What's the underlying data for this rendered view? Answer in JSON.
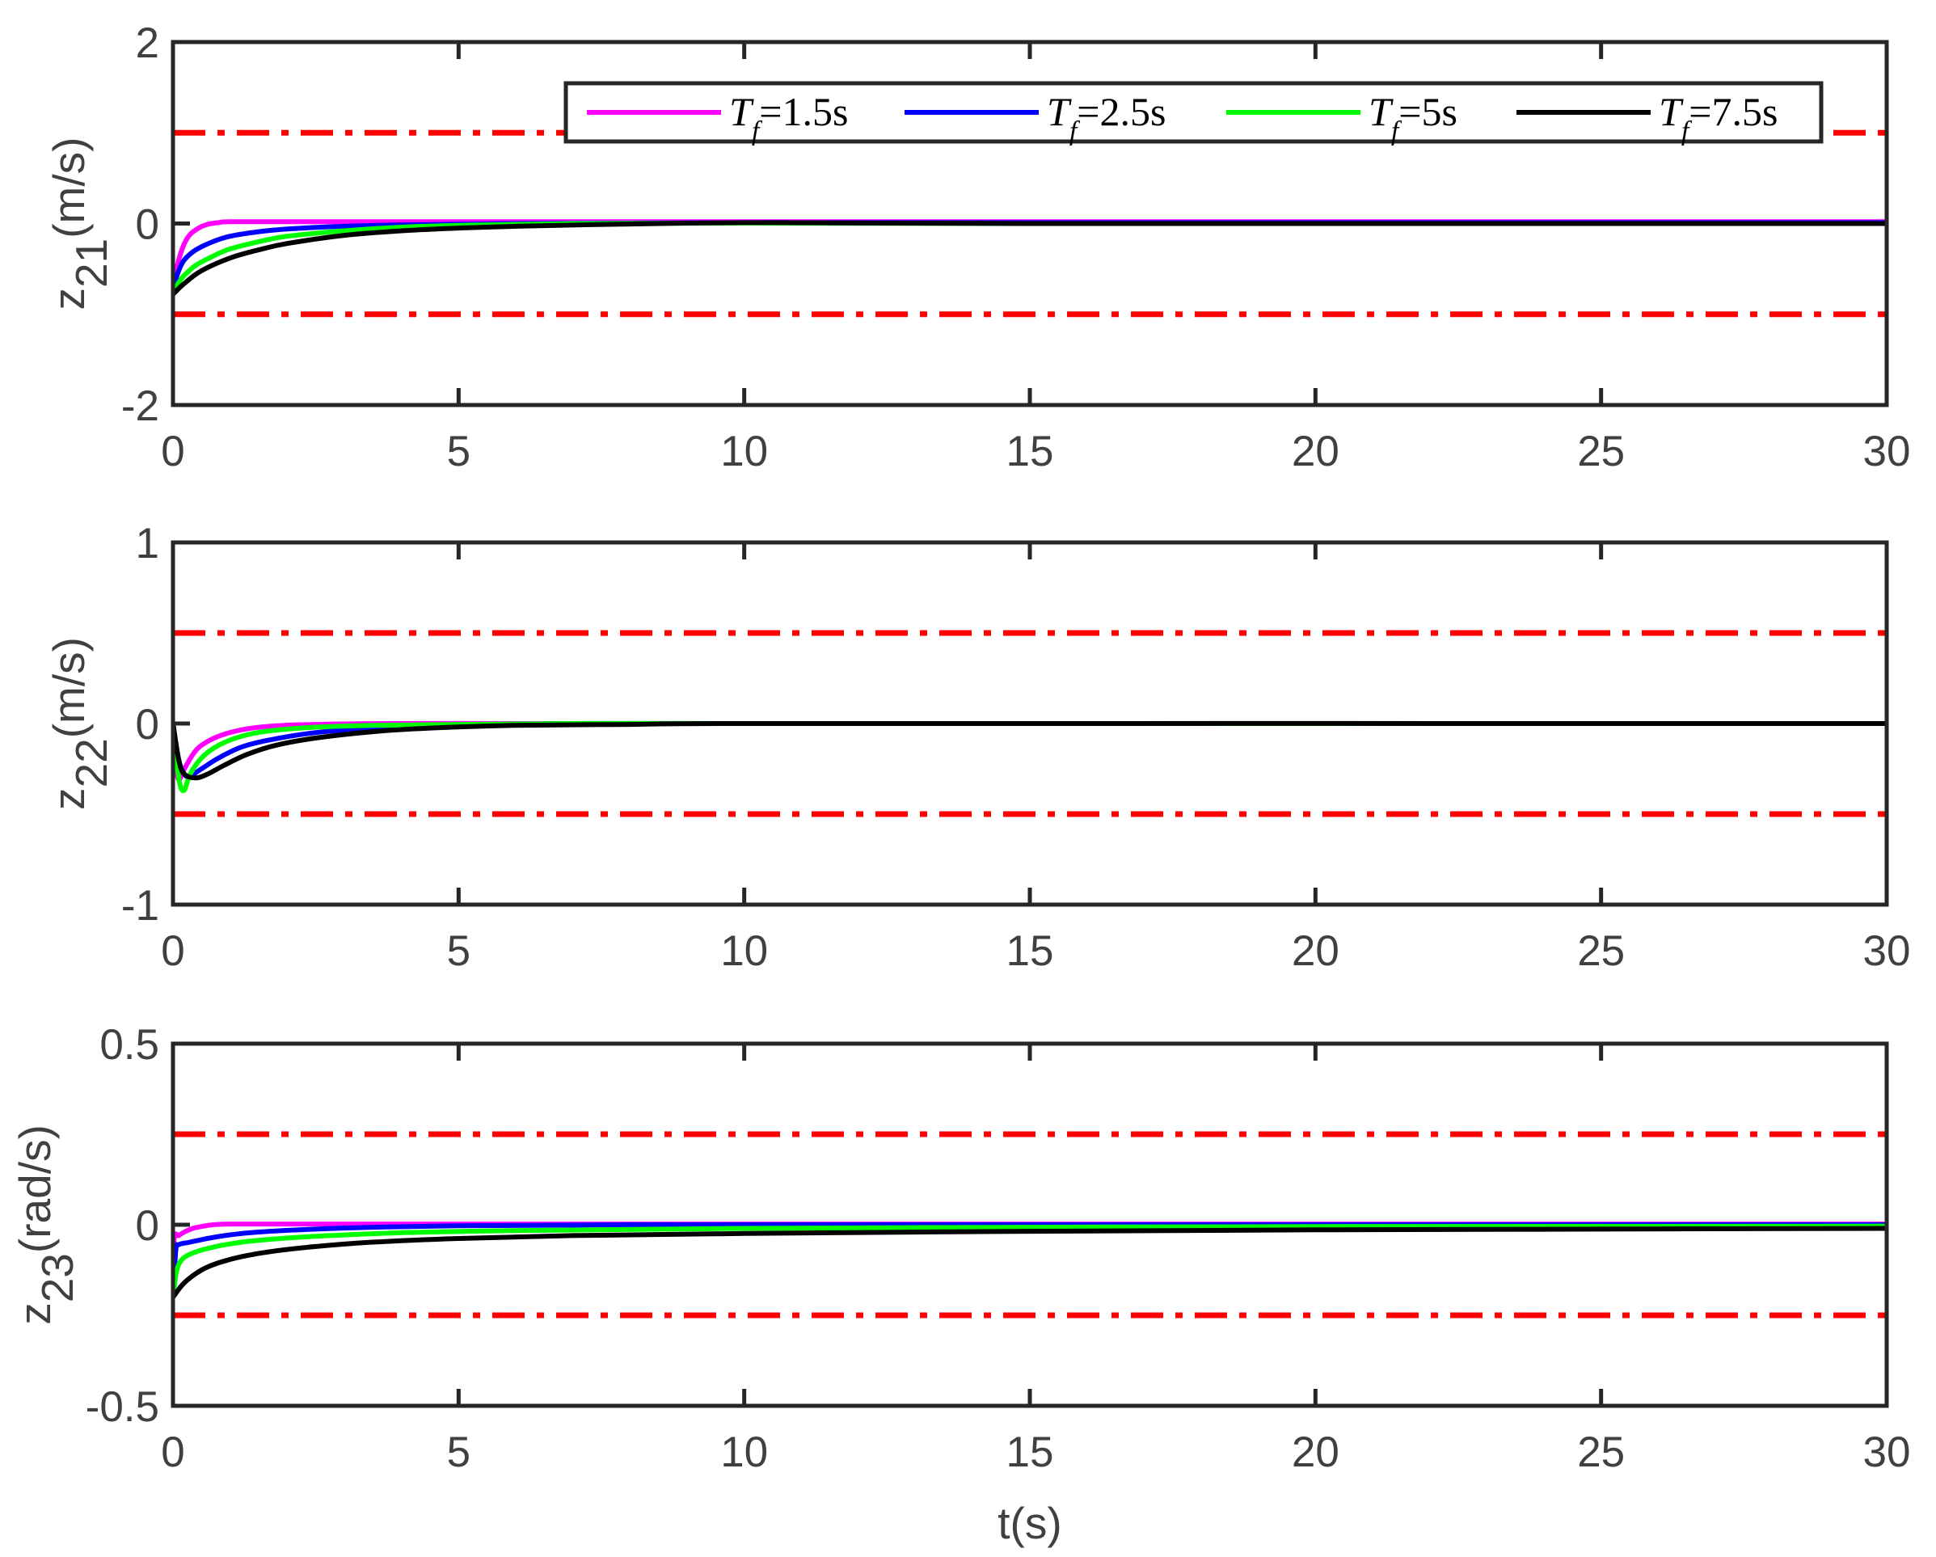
{
  "chart_data": {
    "type": "line",
    "layout": "3 vertically stacked subplots sharing x-axis",
    "xlabel": "t(s)",
    "xlim": [
      0,
      30
    ],
    "xticks": [
      0,
      5,
      10,
      15,
      20,
      25,
      30
    ],
    "grid": false,
    "legend": {
      "position": "top inside first subplot, horizontal",
      "entries": [
        {
          "label_main": "T",
          "label_sub": "f",
          "label_rest": "=1.5s",
          "color": "#ff00ff"
        },
        {
          "label_main": "T",
          "label_sub": "f",
          "label_rest": "=2.5s",
          "color": "#0000ff"
        },
        {
          "label_main": "T",
          "label_sub": "f",
          "label_rest": "=5s",
          "color": "#00ff00"
        },
        {
          "label_main": "T",
          "label_sub": "f",
          "label_rest": "=7.5s",
          "color": "#000000"
        }
      ]
    },
    "subplots": [
      {
        "ylabel_main": "z",
        "ylabel_sub": "21",
        "ylabel_unit": "(m/s)",
        "ylim": [
          -2,
          2
        ],
        "yticks": [
          -2,
          0,
          2
        ],
        "ytick_labels": [
          "-2",
          "0",
          "2"
        ],
        "bounds": {
          "upper": 1,
          "lower": -1,
          "color": "#ff0000",
          "style": "dash-dot"
        },
        "series": [
          {
            "name": "Tf=1.5s",
            "color": "#ff00ff",
            "x": [
              0,
              0.05,
              0.1,
              0.2,
              0.3,
              0.45,
              0.6,
              0.8,
              1.0,
              2,
              5,
              10,
              20,
              30
            ],
            "y": [
              -0.78,
              -0.55,
              -0.4,
              -0.22,
              -0.12,
              -0.05,
              -0.01,
              0.01,
              0.02,
              0.02,
              0.02,
              0.02,
              0.02,
              0.02
            ]
          },
          {
            "name": "Tf=2.5s",
            "color": "#0000ff",
            "x": [
              0,
              0.05,
              0.1,
              0.2,
              0.4,
              0.7,
              1.0,
              1.5,
              2,
              3,
              4,
              6,
              10,
              20,
              30
            ],
            "y": [
              -0.78,
              -0.62,
              -0.52,
              -0.4,
              -0.29,
              -0.2,
              -0.14,
              -0.09,
              -0.06,
              -0.03,
              -0.015,
              0,
              0.01,
              0.01,
              0.01
            ]
          },
          {
            "name": "Tf=5s",
            "color": "#00ff00",
            "x": [
              0,
              0.1,
              0.2,
              0.4,
              0.7,
              1.0,
              1.5,
              2,
              3,
              4,
              5,
              7,
              10,
              15,
              20,
              30
            ],
            "y": [
              -0.78,
              -0.65,
              -0.57,
              -0.46,
              -0.36,
              -0.28,
              -0.2,
              -0.14,
              -0.08,
              -0.04,
              -0.02,
              0,
              0.005,
              0,
              0,
              0
            ]
          },
          {
            "name": "Tf=7.5s",
            "color": "#000000",
            "x": [
              0,
              0.2,
              0.5,
              1.0,
              1.5,
              2,
              3,
              4,
              5,
              6,
              8,
              10,
              12,
              15,
              20,
              30
            ],
            "y": [
              -0.78,
              -0.66,
              -0.52,
              -0.38,
              -0.29,
              -0.22,
              -0.13,
              -0.08,
              -0.05,
              -0.03,
              -0.005,
              0.01,
              0.005,
              0,
              0,
              0
            ]
          }
        ]
      },
      {
        "ylabel_main": "z",
        "ylabel_sub": "22",
        "ylabel_unit": "(m/s)",
        "ylim": [
          -1,
          1
        ],
        "yticks": [
          -1,
          0,
          1
        ],
        "ytick_labels": [
          "-1",
          "0",
          "1"
        ],
        "bounds": {
          "upper": 0.5,
          "lower": -0.5,
          "color": "#ff0000",
          "style": "dash-dot"
        },
        "series": [
          {
            "name": "Tf=1.5s",
            "color": "#ff00ff",
            "x": [
              0,
              0.05,
              0.1,
              0.2,
              0.35,
              0.5,
              0.8,
              1.2,
              1.7,
              2.5,
              4,
              10,
              30
            ],
            "y": [
              0,
              -0.22,
              -0.31,
              -0.25,
              -0.17,
              -0.12,
              -0.07,
              -0.035,
              -0.015,
              -0.005,
              0,
              0,
              0
            ]
          },
          {
            "name": "Tf=2.5s",
            "color": "#0000ff",
            "x": [
              0,
              0.1,
              0.2,
              0.3,
              0.5,
              0.8,
              1.2,
              1.7,
              2.5,
              3.5,
              5,
              7,
              10,
              30
            ],
            "y": [
              0,
              -0.2,
              -0.28,
              -0.29,
              -0.25,
              -0.19,
              -0.13,
              -0.09,
              -0.05,
              -0.025,
              -0.01,
              0,
              0,
              0
            ]
          },
          {
            "name": "Tf=5s",
            "color": "#00ff00",
            "x": [
              0,
              0.1,
              0.19,
              0.3,
              0.5,
              0.8,
              1.2,
              1.7,
              2.5,
              3.5,
              5,
              7,
              10,
              30
            ],
            "y": [
              0,
              -0.3,
              -0.37,
              -0.28,
              -0.19,
              -0.12,
              -0.07,
              -0.04,
              -0.02,
              -0.01,
              -0.005,
              0,
              0,
              0
            ]
          },
          {
            "name": "Tf=7.5s",
            "color": "#000000",
            "x": [
              0,
              0.1,
              0.2,
              0.4,
              0.6,
              0.9,
              1.3,
              1.8,
              2.5,
              3.5,
              4.5,
              6,
              8,
              10,
              30
            ],
            "y": [
              0,
              -0.2,
              -0.28,
              -0.3,
              -0.28,
              -0.23,
              -0.17,
              -0.12,
              -0.08,
              -0.045,
              -0.025,
              -0.01,
              -0.005,
              0,
              0
            ]
          }
        ]
      },
      {
        "ylabel_main": "z",
        "ylabel_sub": "23",
        "ylabel_unit": "(rad/s)",
        "ylim": [
          -0.5,
          0.5
        ],
        "yticks": [
          -0.5,
          0,
          0.5
        ],
        "ytick_labels": [
          "-0.5",
          "0",
          "0.5"
        ],
        "bounds": {
          "upper": 0.25,
          "lower": -0.25,
          "color": "#ff0000",
          "style": "dash-dot"
        },
        "series": [
          {
            "name": "Tf=1.5s",
            "color": "#ff00ff",
            "x": [
              0,
              0.02,
              0.1,
              0.2,
              0.35,
              0.5,
              0.7,
              1.0,
              2,
              5,
              10,
              30
            ],
            "y": [
              -0.2,
              -0.04,
              -0.03,
              -0.02,
              -0.01,
              -0.005,
              0,
              0.002,
              0.002,
              0.002,
              0.002,
              0.002
            ]
          },
          {
            "name": "Tf=2.5s",
            "color": "#0000ff",
            "x": [
              0,
              0.05,
              0.1,
              0.3,
              0.6,
              1.0,
              1.5,
              2.5,
              3.5,
              5,
              8,
              15,
              30
            ],
            "y": [
              -0.2,
              -0.07,
              -0.055,
              -0.048,
              -0.038,
              -0.028,
              -0.02,
              -0.012,
              -0.007,
              -0.003,
              0,
              0,
              0
            ]
          },
          {
            "name": "Tf=5s",
            "color": "#00ff00",
            "x": [
              0,
              0.05,
              0.1,
              0.2,
              0.4,
              0.7,
              1.0,
              1.5,
              2.5,
              4,
              6,
              10,
              15,
              20,
              30
            ],
            "y": [
              -0.2,
              -0.14,
              -0.11,
              -0.09,
              -0.075,
              -0.062,
              -0.053,
              -0.043,
              -0.032,
              -0.022,
              -0.016,
              -0.01,
              -0.007,
              -0.005,
              -0.004
            ]
          },
          {
            "name": "Tf=7.5s",
            "color": "#000000",
            "x": [
              0,
              0.2,
              0.5,
              0.8,
              1.2,
              1.8,
              2.5,
              3.5,
              5,
              7,
              10,
              15,
              20,
              25,
              30
            ],
            "y": [
              -0.2,
              -0.16,
              -0.125,
              -0.105,
              -0.088,
              -0.072,
              -0.06,
              -0.048,
              -0.038,
              -0.03,
              -0.024,
              -0.018,
              -0.014,
              -0.012,
              -0.01
            ]
          }
        ]
      }
    ]
  }
}
